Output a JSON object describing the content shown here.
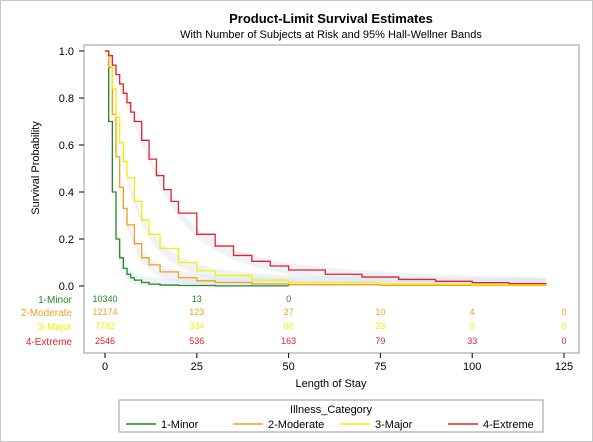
{
  "chart_data": {
    "type": "line",
    "title": "Product-Limit Survival Estimates",
    "subtitle": "With Number of Subjects at Risk and 95% Hall-Wellner Bands",
    "xlabel": "Length of Stay",
    "ylabel": "Survival Probability",
    "xlim": [
      0,
      125
    ],
    "ylim": [
      0,
      1
    ],
    "x_ticks": [
      0,
      25,
      50,
      75,
      100,
      125
    ],
    "y_ticks": [
      0.0,
      0.2,
      0.4,
      0.6,
      0.8,
      1.0
    ],
    "y_tick_labels": [
      "0.0",
      "0.2",
      "0.4",
      "0.6",
      "0.8",
      "1.0"
    ],
    "legend": {
      "title": "Illness_Category",
      "position": "bottom"
    },
    "series": [
      {
        "name": "1-Minor",
        "color": "#1e8c1e",
        "x": [
          0,
          1,
          2,
          3,
          4,
          5,
          6,
          7,
          8,
          10,
          12,
          15,
          20,
          30,
          50
        ],
        "y": [
          1.0,
          0.7,
          0.4,
          0.2,
          0.12,
          0.075,
          0.05,
          0.035,
          0.025,
          0.015,
          0.008,
          0.004,
          0.002,
          0.0005,
          0.0
        ],
        "at_risk": {
          "x": [
            0,
            25,
            50
          ],
          "values": [
            "10340",
            "13",
            "0"
          ]
        }
      },
      {
        "name": "2-Moderate",
        "color": "#f0a020",
        "x": [
          0,
          1,
          2,
          3,
          4,
          5,
          6,
          8,
          10,
          12,
          15,
          20,
          25,
          30,
          40,
          50,
          75,
          100,
          120
        ],
        "y": [
          1.0,
          0.93,
          0.73,
          0.55,
          0.42,
          0.33,
          0.26,
          0.18,
          0.12,
          0.09,
          0.06,
          0.035,
          0.022,
          0.015,
          0.009,
          0.006,
          0.003,
          0.002,
          0.001
        ],
        "at_risk": {
          "x": [
            0,
            25,
            50,
            75,
            100,
            125
          ],
          "values": [
            "12174",
            "123",
            "27",
            "10",
            "4",
            "0"
          ]
        }
      },
      {
        "name": "3-Major",
        "color": "#f2f200",
        "x": [
          0,
          1,
          2,
          3,
          4,
          5,
          6,
          8,
          10,
          12,
          15,
          20,
          25,
          30,
          40,
          50,
          75,
          100,
          120
        ],
        "y": [
          1.0,
          0.97,
          0.84,
          0.72,
          0.61,
          0.53,
          0.46,
          0.36,
          0.28,
          0.22,
          0.16,
          0.1,
          0.065,
          0.045,
          0.025,
          0.015,
          0.008,
          0.005,
          0.004
        ],
        "at_risk": {
          "x": [
            0,
            25,
            50,
            75,
            100,
            125
          ],
          "values": [
            "7782",
            "334",
            "66",
            "23",
            "9",
            "0"
          ]
        }
      },
      {
        "name": "4-Extreme",
        "color": "#e8202a",
        "x": [
          0,
          1,
          2,
          3,
          4,
          5,
          6,
          7,
          8,
          10,
          12,
          14,
          16,
          18,
          20,
          25,
          30,
          35,
          40,
          45,
          50,
          60,
          70,
          80,
          90,
          100,
          110,
          120
        ],
        "y": [
          1.0,
          0.98,
          0.94,
          0.9,
          0.86,
          0.82,
          0.78,
          0.74,
          0.7,
          0.62,
          0.54,
          0.47,
          0.41,
          0.36,
          0.31,
          0.22,
          0.17,
          0.13,
          0.105,
          0.085,
          0.068,
          0.05,
          0.038,
          0.028,
          0.02,
          0.014,
          0.01,
          0.006
        ],
        "at_risk": {
          "x": [
            0,
            25,
            50,
            75,
            100,
            125
          ],
          "values": [
            "2546",
            "536",
            "163",
            "79",
            "33",
            "0"
          ]
        }
      }
    ]
  }
}
